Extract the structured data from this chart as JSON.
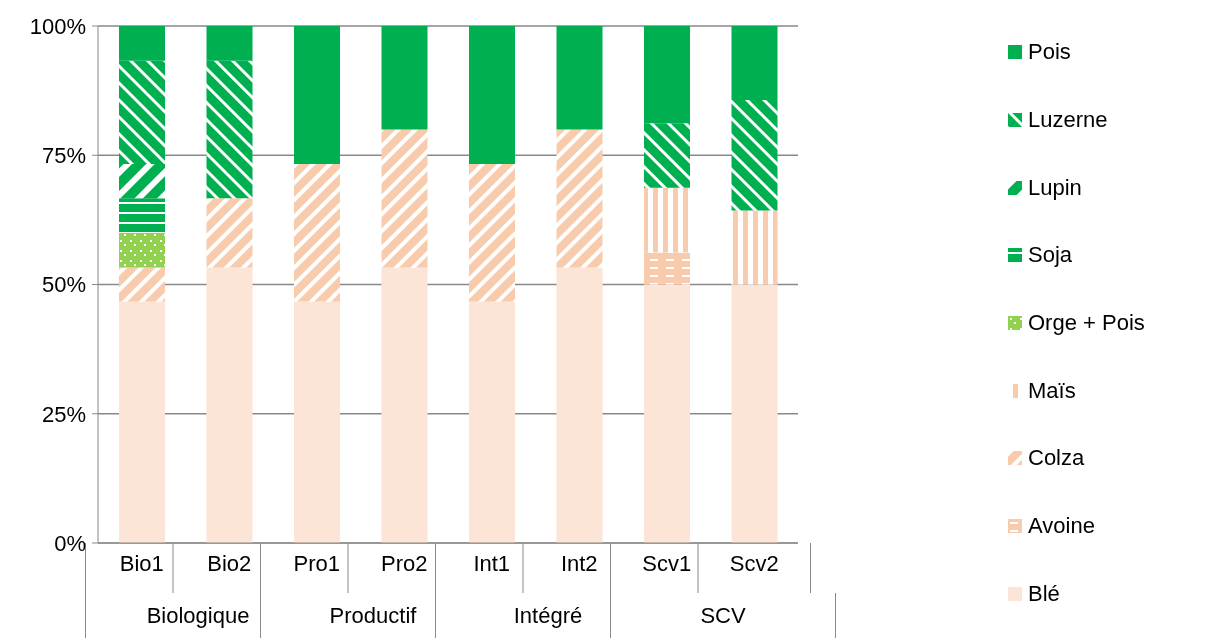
{
  "chart_data": {
    "type": "bar",
    "stacked": true,
    "categories": [
      "Bio1",
      "Bio2",
      "Pro1",
      "Pro2",
      "Int1",
      "Int2",
      "Scv1",
      "Scv2"
    ],
    "series": [
      {
        "name": "Blé",
        "color": "#fce4d6",
        "values": [
          46.7,
          53.3,
          46.7,
          53.3,
          46.7,
          53.3,
          50,
          50
        ]
      },
      {
        "name": "Avoine",
        "color": "#f8cbad",
        "values": [
          null,
          null,
          null,
          null,
          null,
          null,
          6.2,
          null
        ]
      },
      {
        "name": "Colza",
        "color": "#f8cbad",
        "values": [
          6.6,
          13.4,
          26.6,
          26.7,
          26.6,
          26.7,
          null,
          null
        ]
      },
      {
        "name": "Maïs",
        "color": "#f8cbad",
        "values": [
          null,
          null,
          null,
          null,
          null,
          null,
          12.5,
          14.3
        ]
      },
      {
        "name": "Orge + Pois",
        "color": "#92d050",
        "values": [
          6.7,
          null,
          null,
          null,
          null,
          null,
          null,
          null
        ]
      },
      {
        "name": "Soja",
        "color": "#00b050",
        "values": [
          6.7,
          null,
          null,
          null,
          null,
          null,
          null,
          null
        ]
      },
      {
        "name": "Lupin",
        "color": "#00b050",
        "values": [
          6.6,
          null,
          null,
          null,
          null,
          null,
          null,
          null
        ]
      },
      {
        "name": "Luzerne",
        "color": "#00b050",
        "values": [
          20,
          26.6,
          null,
          null,
          null,
          null,
          12.5,
          21.4
        ]
      },
      {
        "name": "Pois",
        "color": "#00b050",
        "values": [
          6.7,
          6.7,
          26.7,
          20,
          26.7,
          20,
          18.8,
          14.3
        ]
      }
    ],
    "ylim": [
      0,
      100
    ],
    "yticks": [
      {
        "value": 0,
        "label": "0%"
      },
      {
        "value": 25,
        "label": "25%"
      },
      {
        "value": 50,
        "label": "50%"
      },
      {
        "value": 75,
        "label": "75%"
      },
      {
        "value": 100,
        "label": "100%"
      }
    ],
    "grid": "y",
    "legend": "right",
    "annotations": [
      "Biologique",
      "Productif",
      "Intégré",
      "SCV"
    ]
  }
}
